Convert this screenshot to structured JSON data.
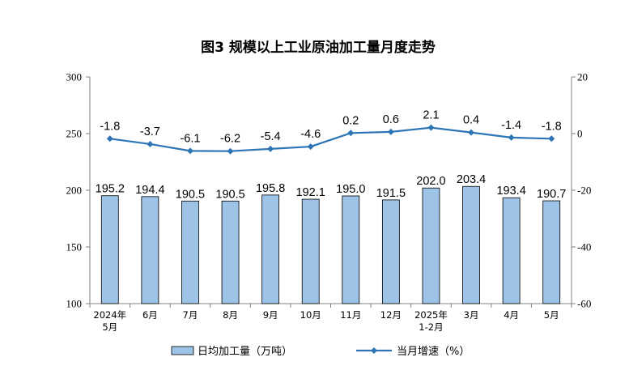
{
  "chart_data": {
    "type": "bar+line",
    "title": "图3  规模以上工业原油加工量月度走势",
    "categories": [
      [
        "2024年",
        "5月"
      ],
      [
        "6月"
      ],
      [
        "7月"
      ],
      [
        "8月"
      ],
      [
        "9月"
      ],
      [
        "10月"
      ],
      [
        "11月"
      ],
      [
        "12月"
      ],
      [
        "2025年",
        "1-2月"
      ],
      [
        "3月"
      ],
      [
        "4月"
      ],
      [
        "5月"
      ]
    ],
    "left_axis": {
      "ylim": [
        100,
        300
      ],
      "ticks": [
        "100",
        "150",
        "200",
        "250",
        "300"
      ]
    },
    "right_axis": {
      "ylim": [
        -60,
        20
      ],
      "ticks": [
        "-60",
        "-40",
        "-20",
        "0",
        "20"
      ]
    },
    "series": [
      {
        "name": "日均加工量（万吨）",
        "type": "bar",
        "axis": "left",
        "color": "#9DC3E6",
        "values": [
          195.2,
          194.4,
          190.5,
          190.5,
          195.8,
          192.1,
          195.0,
          191.5,
          202.0,
          203.4,
          193.4,
          190.7
        ],
        "labels": [
          "195.2",
          "194.4",
          "190.5",
          "190.5",
          "195.8",
          "192.1",
          "195.0",
          "191.5",
          "202.0",
          "203.4",
          "193.4",
          "190.7"
        ]
      },
      {
        "name": "当月增速（%）",
        "type": "line",
        "axis": "right",
        "color": "#2E75B6",
        "values": [
          -1.8,
          -3.7,
          -6.1,
          -6.2,
          -5.4,
          -4.6,
          0.2,
          0.6,
          2.1,
          0.4,
          -1.4,
          -1.8
        ],
        "labels": [
          "-1.8",
          "-3.7",
          "-6.1",
          "-6.2",
          "-5.4",
          "-4.6",
          "0.2",
          "0.6",
          "2.1",
          "0.4",
          "-1.4",
          "-1.8"
        ]
      }
    ],
    "grid": false,
    "legend": "bottom"
  }
}
